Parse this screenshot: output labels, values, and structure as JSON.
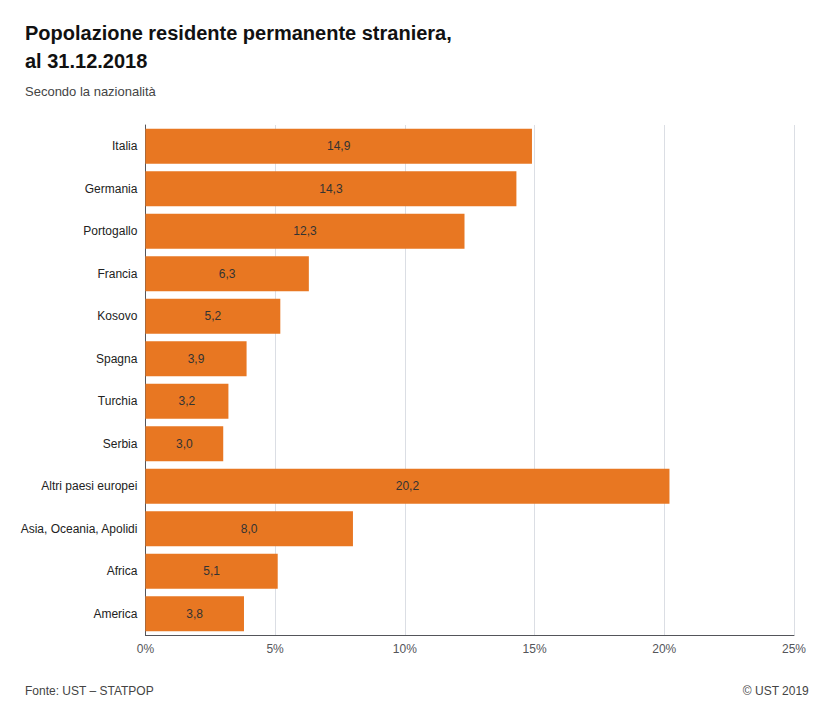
{
  "chart_data": {
    "type": "bar",
    "orientation": "horizontal",
    "title": "Popolazione residente permanente straniera,\nal 31.12.2018",
    "subtitle": "Secondo la nazionalità",
    "categories": [
      "Italia",
      "Germania",
      "Portogallo",
      "Francia",
      "Kosovo",
      "Spagna",
      "Turchia",
      "Serbia",
      "Altri paesi europei",
      "Asia, Oceania, Apolidi",
      "Africa",
      "America"
    ],
    "values": [
      14.9,
      14.3,
      12.3,
      6.3,
      5.2,
      3.9,
      3.2,
      3.0,
      20.2,
      8.0,
      5.1,
      3.8
    ],
    "value_labels": [
      "14,9",
      "14,3",
      "12,3",
      "6,3",
      "5,2",
      "3,9",
      "3,2",
      "3,0",
      "20,2",
      "8,0",
      "5,1",
      "3,8"
    ],
    "data_labels": true,
    "color": "#E87722",
    "xlim": [
      0,
      25
    ],
    "xticks": [
      {
        "value": 0,
        "label": "0%"
      },
      {
        "value": 5,
        "label": "5%"
      },
      {
        "value": 10,
        "label": "10%"
      },
      {
        "value": 15,
        "label": "15%"
      },
      {
        "value": 20,
        "label": "20%"
      },
      {
        "value": 25,
        "label": "25%"
      }
    ],
    "grid": true,
    "annotations": [
      "Fonte: UST – STATPOP",
      "© UST 2019"
    ]
  }
}
